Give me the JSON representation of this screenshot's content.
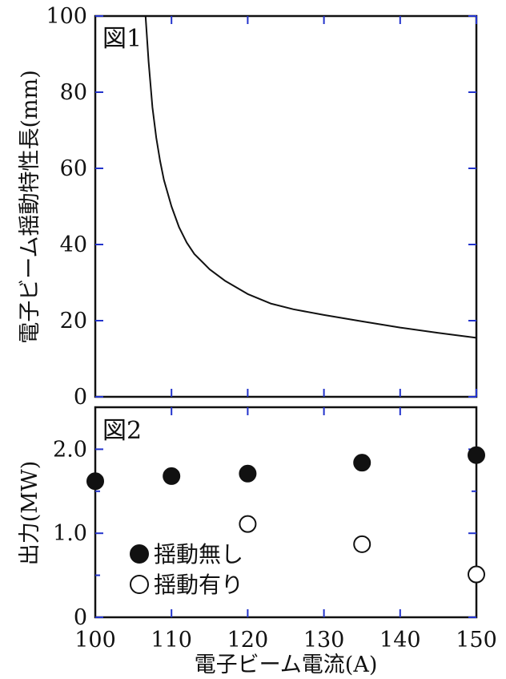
{
  "chart_data": [
    {
      "panel_label": "図1",
      "type": "line",
      "ylabel": "電子ビーム揺動特性長(mm)",
      "ylim": [
        0,
        100
      ],
      "xlim": [
        100,
        150
      ],
      "yticks": [
        "0",
        "20",
        "40",
        "60",
        "80",
        "100"
      ],
      "grid": false,
      "series": [
        {
          "x": [
            106.6,
            107,
            107.5,
            108,
            108.5,
            109,
            110,
            111,
            112,
            113,
            115,
            117,
            120,
            123,
            126,
            130,
            135,
            140,
            145,
            150
          ],
          "y": [
            100,
            88,
            76,
            68,
            62,
            57,
            50,
            44.5,
            40.5,
            37.5,
            33.5,
            30.5,
            27,
            24.5,
            23,
            21.5,
            19.8,
            18.2,
            16.8,
            15.5
          ]
        }
      ]
    },
    {
      "panel_label": "図2",
      "type": "scatter",
      "ylabel": "出力(MW)",
      "xlabel": "電子ビーム電流(A)",
      "ylim": [
        0,
        2.5
      ],
      "xlim": [
        100,
        150
      ],
      "yticks": [
        "0",
        "1.0",
        "2.0"
      ],
      "xticks": [
        "100",
        "110",
        "120",
        "130",
        "140",
        "150"
      ],
      "grid": false,
      "legend_position": "bottom-left",
      "series": [
        {
          "name": "揺動無し",
          "marker": "filled-circle",
          "x": [
            100,
            110,
            120,
            135,
            150
          ],
          "y": [
            1.62,
            1.68,
            1.71,
            1.84,
            1.93
          ]
        },
        {
          "name": "揺動有り",
          "marker": "open-circle",
          "x": [
            120,
            135,
            150
          ],
          "y": [
            1.11,
            0.87,
            0.51
          ]
        }
      ]
    }
  ]
}
